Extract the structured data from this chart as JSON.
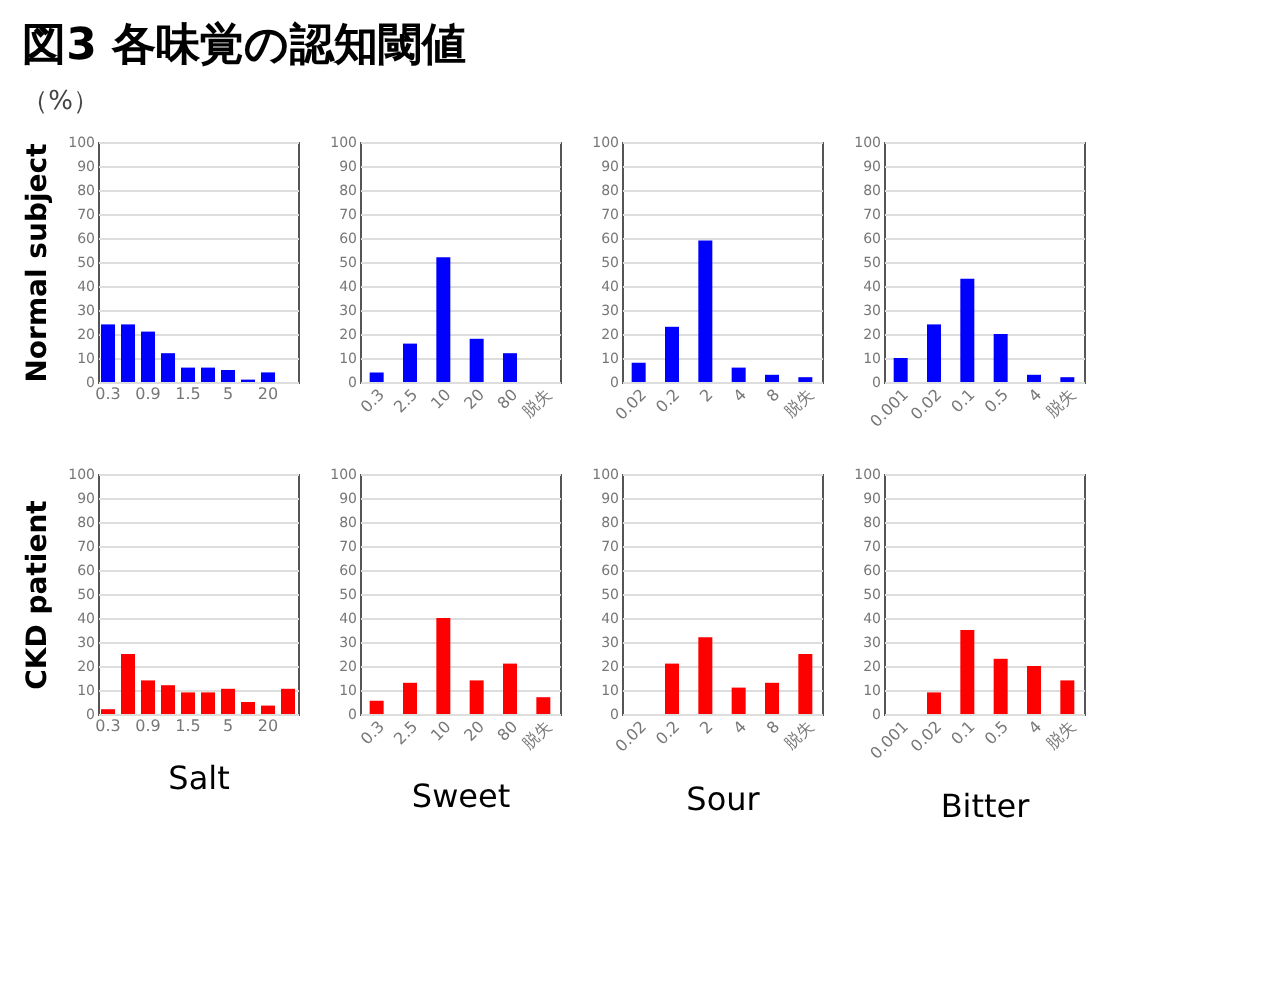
{
  "chart_data": [
    {
      "type": "bar",
      "title": "図3 各味覚の認知閾値",
      "annotations": [
        "（%）"
      ],
      "ylabel": "Normal subject",
      "categories": [
        "0.3",
        null,
        "0.9",
        null,
        "1.5",
        null,
        "5",
        null,
        "20",
        null
      ],
      "values": [
        24,
        24,
        21,
        12,
        6,
        6,
        5,
        1,
        4,
        0
      ],
      "color": "#0000ff",
      "ylim": [
        0,
        100
      ],
      "yticks": [
        0,
        10,
        20,
        30,
        40,
        50,
        60,
        70,
        80,
        90,
        100
      ],
      "grid": "y"
    },
    {
      "type": "bar",
      "categories": [
        "0.3",
        "2.5",
        "10",
        "20",
        "80",
        "脱失"
      ],
      "values": [
        4,
        16,
        52,
        18,
        12,
        0
      ],
      "color": "#0000ff",
      "ylim": [
        0,
        100
      ],
      "yticks": [
        0,
        10,
        20,
        30,
        40,
        50,
        60,
        70,
        80,
        90,
        100
      ],
      "grid": "y"
    },
    {
      "type": "bar",
      "categories": [
        "0.02",
        "0.2",
        "2",
        "4",
        "8",
        "脱失"
      ],
      "values": [
        8,
        23,
        59,
        6,
        3,
        2
      ],
      "color": "#0000ff",
      "ylim": [
        0,
        100
      ],
      "yticks": [
        0,
        10,
        20,
        30,
        40,
        50,
        60,
        70,
        80,
        90,
        100
      ],
      "grid": "y"
    },
    {
      "type": "bar",
      "categories": [
        "0.001",
        "0.02",
        "0.1",
        "0.5",
        "4",
        "脱失"
      ],
      "values": [
        10,
        24,
        43,
        20,
        3,
        2
      ],
      "color": "#0000ff",
      "ylim": [
        0,
        100
      ],
      "yticks": [
        0,
        10,
        20,
        30,
        40,
        50,
        60,
        70,
        80,
        90,
        100
      ],
      "grid": "y"
    },
    {
      "type": "bar",
      "ylabel": "CKD patient",
      "xlabel": "Salt",
      "categories": [
        "0.3",
        null,
        "0.9",
        null,
        "1.5",
        null,
        "5",
        null,
        "20",
        null
      ],
      "values": [
        2,
        25,
        14,
        12,
        9,
        9,
        10.5,
        5,
        3.5,
        10.5
      ],
      "color": "#ff0000",
      "ylim": [
        0,
        100
      ],
      "yticks": [
        0,
        10,
        20,
        30,
        40,
        50,
        60,
        70,
        80,
        90,
        100
      ],
      "grid": "y"
    },
    {
      "type": "bar",
      "xlabel": "Sweet",
      "categories": [
        "0.3",
        "2.5",
        "10",
        "20",
        "80",
        "脱失"
      ],
      "values": [
        5.5,
        13,
        40,
        14,
        21,
        7
      ],
      "color": "#ff0000",
      "ylim": [
        0,
        100
      ],
      "yticks": [
        0,
        10,
        20,
        30,
        40,
        50,
        60,
        70,
        80,
        90,
        100
      ],
      "grid": "y"
    },
    {
      "type": "bar",
      "xlabel": "Sour",
      "categories": [
        "0.02",
        "0.2",
        "2",
        "4",
        "8",
        "脱失"
      ],
      "values": [
        0,
        21,
        32,
        11,
        13,
        25
      ],
      "color": "#ff0000",
      "ylim": [
        0,
        100
      ],
      "yticks": [
        0,
        10,
        20,
        30,
        40,
        50,
        60,
        70,
        80,
        90,
        100
      ],
      "grid": "y"
    },
    {
      "type": "bar",
      "xlabel": "Bitter",
      "categories": [
        "0.001",
        "0.02",
        "0.1",
        "0.5",
        "4",
        "脱失"
      ],
      "values": [
        0,
        9,
        35,
        23,
        20,
        14
      ],
      "color": "#ff0000",
      "ylim": [
        0,
        100
      ],
      "yticks": [
        0,
        10,
        20,
        30,
        40,
        50,
        60,
        70,
        80,
        90,
        100
      ],
      "grid": "y"
    }
  ]
}
